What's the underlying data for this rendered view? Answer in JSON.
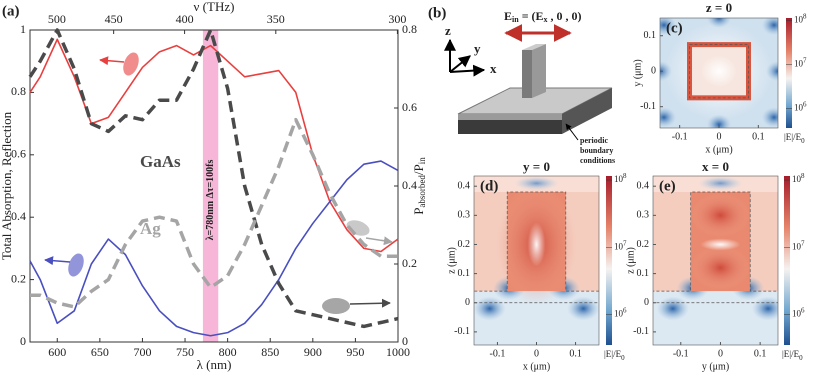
{
  "chart_data": {
    "type": "line",
    "panel_label": "(a)",
    "x_label": "λ (nm)",
    "x2_label": "ν (THz)",
    "y_label": "Total Absorption, Reflection",
    "y2_label": [
      "P",
      "absorbed",
      "/P",
      "in"
    ],
    "x": [
      568,
      580,
      600,
      620,
      640,
      660,
      680,
      700,
      720,
      740,
      760,
      780,
      800,
      820,
      840,
      860,
      880,
      900,
      920,
      940,
      960,
      980,
      1000
    ],
    "xlim": [
      568,
      1000
    ],
    "xticks": [
      600,
      650,
      700,
      750,
      800,
      850,
      900,
      950,
      1000
    ],
    "x2ticks": [
      500,
      450,
      400,
      350,
      300
    ],
    "ylim": [
      0,
      1
    ],
    "yticks": [
      0,
      0.2,
      0.4,
      0.6,
      0.8,
      1
    ],
    "y2lim": [
      0,
      0.8
    ],
    "y2ticks": [
      0,
      0.2,
      0.4,
      0.6,
      0.8
    ],
    "series": [
      {
        "color": "#e8403f",
        "style": "solid",
        "values": [
          0.8,
          0.85,
          0.97,
          0.85,
          0.7,
          0.72,
          0.8,
          0.88,
          0.93,
          0.95,
          0.92,
          0.95,
          0.9,
          0.85,
          0.86,
          0.87,
          0.8,
          0.6,
          0.45,
          0.36,
          0.3,
          0.29,
          0.33
        ]
      },
      {
        "color": "#4a4fc0",
        "style": "solid",
        "values": [
          0.26,
          0.2,
          0.06,
          0.1,
          0.25,
          0.33,
          0.28,
          0.18,
          0.1,
          0.05,
          0.03,
          0.02,
          0.03,
          0.06,
          0.12,
          0.2,
          0.3,
          0.38,
          0.45,
          0.52,
          0.57,
          0.58,
          0.55
        ]
      },
      {
        "color": "#4a4a4a",
        "style": "dashed",
        "axis": "y2",
        "values": [
          0.68,
          0.72,
          0.8,
          0.7,
          0.56,
          0.54,
          0.58,
          0.57,
          0.62,
          0.62,
          0.7,
          0.8,
          0.65,
          0.4,
          0.25,
          0.15,
          0.08,
          0.07,
          0.06,
          0.05,
          0.04,
          0.05,
          0.06
        ]
      },
      {
        "color": "#a5a5a5",
        "style": "dashed",
        "axis": "y2",
        "values": [
          0.12,
          0.12,
          0.1,
          0.09,
          0.13,
          0.16,
          0.25,
          0.31,
          0.32,
          0.31,
          0.2,
          0.14,
          0.17,
          0.25,
          0.35,
          0.45,
          0.57,
          0.48,
          0.38,
          0.3,
          0.25,
          0.22,
          0.22
        ]
      }
    ],
    "highlight": {
      "xrange": [
        771,
        789
      ],
      "color": "#f7b6d8",
      "label": "λ=780nm  Δτ=100fs"
    },
    "annotations": [
      {
        "text": "GaAs",
        "color": "#4a4a4a"
      },
      {
        "text": "Ag",
        "color": "#a5a5a5"
      }
    ]
  },
  "panel_b": {
    "label": "(b)",
    "axes": [
      "z",
      "y",
      "x"
    ],
    "field": [
      "E",
      "in",
      " = (E",
      "x",
      " , 0 , 0)"
    ],
    "boundary": [
      "periodic",
      "boundary",
      "conditions"
    ]
  },
  "colorbar": {
    "base": "10",
    "ticks": [
      8,
      7,
      6
    ],
    "lim": [
      5.55,
      8.06
    ],
    "label": [
      "|E|/E",
      "0"
    ]
  },
  "panel_c": {
    "label": "(c)",
    "title": "z = 0",
    "x_label": "x (μm)",
    "y_label": "y (μm)",
    "xlim": [
      -0.15,
      0.15
    ],
    "xticks": [
      -0.1,
      0,
      0.1
    ],
    "ylim": [
      -0.16,
      0.15
    ],
    "yticks": [
      0.1,
      0,
      -0.1
    ]
  },
  "panel_d": {
    "label": "(d)",
    "title": "y = 0",
    "x_label": "x (μm)",
    "y_label": "z (μm)",
    "xlim": [
      -0.16,
      0.16
    ],
    "xticks": [
      -0.1,
      0,
      0.1
    ],
    "ylim": [
      -0.145,
      0.435
    ],
    "yticks": [
      0.4,
      0.3,
      0.2,
      0.1,
      0,
      -0.1
    ]
  },
  "panel_e": {
    "label": "(e)",
    "title": "x = 0",
    "x_label": "y (μm)",
    "y_label": "z (μm)",
    "xlim": [
      -0.17,
      0.145
    ],
    "xticks": [
      -0.1,
      0,
      0.1
    ],
    "ylim": [
      -0.145,
      0.435
    ],
    "yticks": [
      0.4,
      0.3,
      0.2,
      0.1,
      0,
      -0.1
    ]
  }
}
